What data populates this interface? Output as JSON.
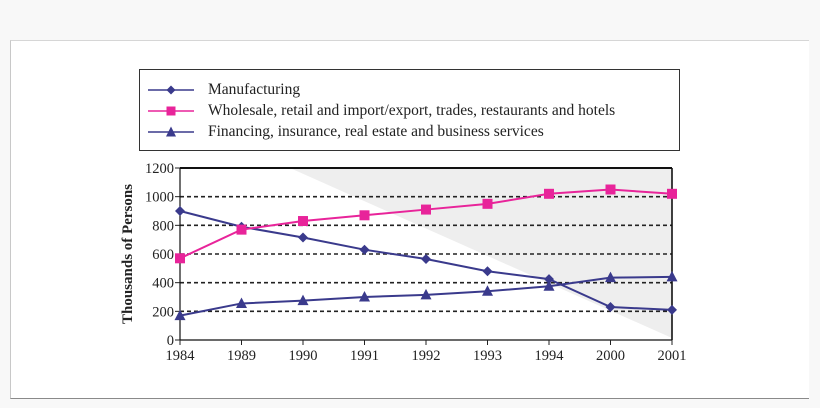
{
  "chart_data": {
    "type": "line",
    "title": "",
    "xlabel": "",
    "ylabel": "Thousands of Persons",
    "categories": [
      "1984",
      "1989",
      "1990",
      "1991",
      "1992",
      "1993",
      "1994",
      "2000",
      "2001"
    ],
    "yticks": [
      "0",
      "200",
      "400",
      "600",
      "800",
      "1000",
      "1200"
    ],
    "ylim": [
      0,
      1200
    ],
    "grid": "horizontal dashed",
    "legend_position": "top",
    "series": [
      {
        "name": "Manufacturing",
        "marker": "diamond",
        "color": "#3a3a8c",
        "values": [
          900,
          790,
          715,
          630,
          565,
          480,
          425,
          230,
          210
        ]
      },
      {
        "name": "Wholesale, retail and import/export, trades, restaurants and hotels",
        "marker": "square",
        "color": "#e8249a",
        "values": [
          570,
          770,
          830,
          870,
          910,
          950,
          1020,
          1050,
          1020
        ]
      },
      {
        "name": "Financing, insurance, real estate and business services",
        "marker": "triangle",
        "color": "#3a3a8c",
        "values": [
          170,
          255,
          275,
          300,
          315,
          340,
          375,
          435,
          440
        ]
      }
    ]
  }
}
